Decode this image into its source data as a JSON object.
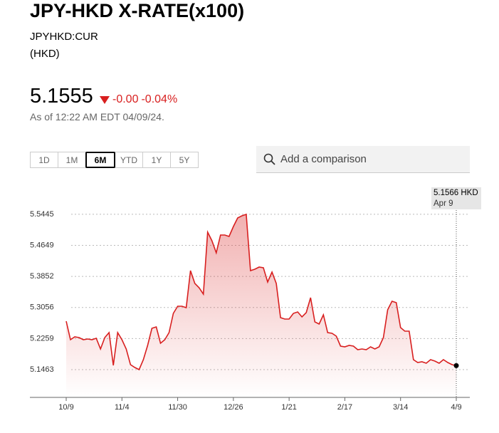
{
  "header": {
    "title": "JPY-HKD X-RATE(x100)",
    "ticker": "JPYHKD:CUR",
    "currency": "(HKD)",
    "price": "5.1555",
    "change": "-0.00",
    "change_percent": "-0.04%",
    "as_of": "As of 12:22 AM EDT 04/09/24."
  },
  "range_buttons": [
    "1D",
    "1M",
    "6M",
    "YTD",
    "1Y",
    "5Y"
  ],
  "selected_range": "6M",
  "search_placeholder": "Add a comparison",
  "chart_data": {
    "type": "area",
    "categories": [
      "10/9",
      null,
      null,
      null,
      null,
      null,
      null,
      null,
      null,
      null,
      null,
      null,
      null,
      "11/4",
      null,
      null,
      null,
      null,
      null,
      null,
      null,
      null,
      null,
      null,
      null,
      null,
      "11/30",
      null,
      null,
      null,
      null,
      null,
      null,
      null,
      null,
      null,
      null,
      null,
      null,
      "12/26",
      null,
      null,
      null,
      null,
      null,
      null,
      null,
      null,
      null,
      null,
      null,
      null,
      "1/21",
      null,
      null,
      null,
      null,
      null,
      null,
      null,
      null,
      null,
      null,
      null,
      null,
      "2/17",
      null,
      null,
      null,
      null,
      null,
      null,
      null,
      null,
      null,
      null,
      null,
      null,
      "3/14",
      null,
      null,
      null,
      null,
      null,
      null,
      null,
      null,
      null,
      null,
      null,
      null,
      "4/9"
    ],
    "values": [
      5.2705,
      5.223,
      5.2303,
      5.2285,
      5.223,
      5.2248,
      5.223,
      5.2266,
      5.1993,
      5.2285,
      5.2413,
      5.1573,
      5.2413,
      5.223,
      5.1993,
      5.1591,
      5.1518,
      5.1463,
      5.1719,
      5.2084,
      5.2522,
      5.2559,
      5.2139,
      5.223,
      5.2413,
      5.2906,
      5.3088,
      5.3088,
      5.3052,
      5.4001,
      5.3672,
      5.3563,
      5.3399,
      5.4987,
      5.4768,
      5.4458,
      5.4914,
      5.4914,
      5.4878,
      5.5133,
      5.5352,
      5.5407,
      5.5444,
      5.4001,
      5.4038,
      5.4092,
      5.4074,
      5.3709,
      5.3965,
      5.3672,
      5.2796,
      5.2759,
      5.2759,
      5.2906,
      5.2942,
      5.2814,
      5.2924,
      5.3307,
      5.2686,
      5.2632,
      5.2869,
      5.2413,
      5.2394,
      5.2321,
      5.2066,
      5.2047,
      5.2084,
      5.2066,
      5.1974,
      5.1993,
      5.1974,
      5.2047,
      5.1993,
      5.2047,
      5.2285,
      5.2997,
      5.3216,
      5.3179,
      5.254,
      5.2449,
      5.2449,
      5.1719,
      5.1646,
      5.1664,
      5.1627,
      5.1719,
      5.1682,
      5.1627,
      5.1719,
      5.1646,
      5.1591,
      5.1566
    ],
    "color": "#d81f1f",
    "ylim": [
      5.0751,
      5.6101
    ],
    "yticks": [
      5.1463,
      5.2259,
      5.3056,
      5.3852,
      5.4649,
      5.5445
    ],
    "grid": true,
    "tooltip": {
      "value_label": "5.1566 HKD",
      "date": "Apr 9"
    }
  }
}
